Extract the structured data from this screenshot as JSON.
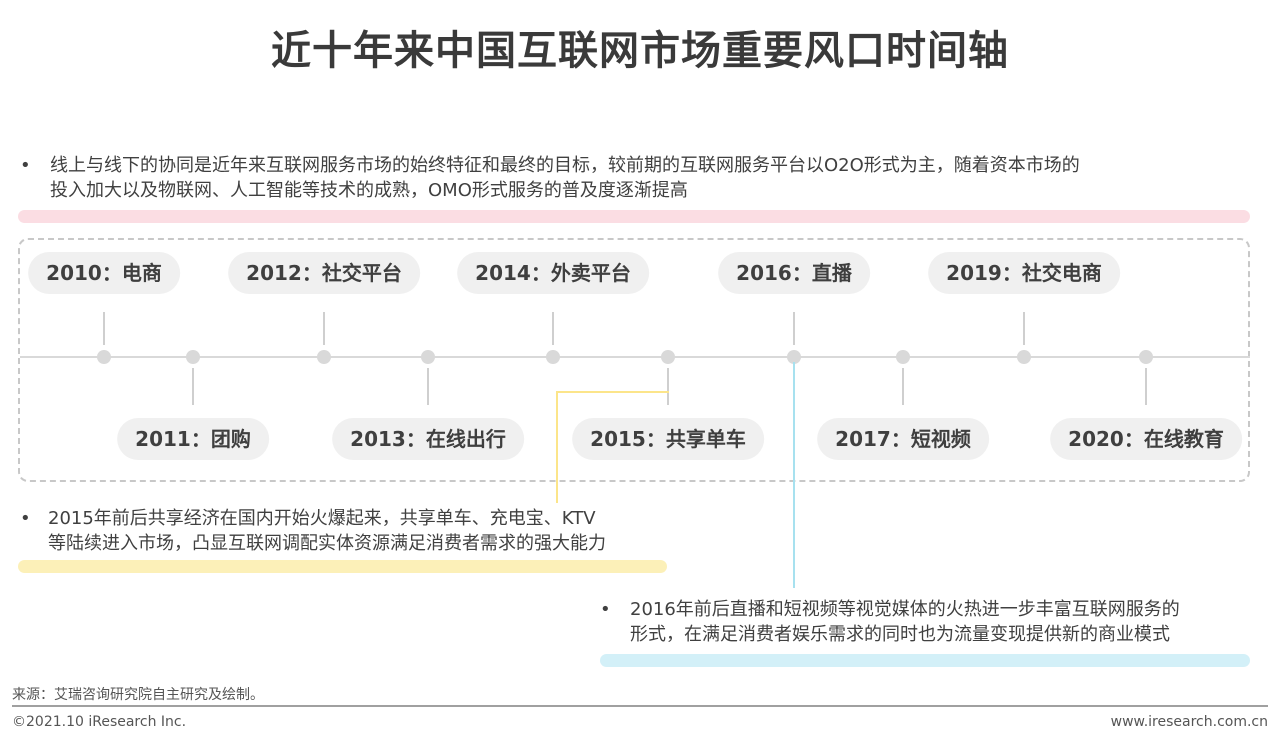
{
  "title": "近十年来中国互联网市场重要风口时间轴",
  "intro": {
    "line1": "线上与线下的协同是近年来互联网服务市场的始终特征和最终的目标，较前期的互联网服务平台以O2O形式为主，随着资本市场的",
    "line2": "投入加大以及物联网、人工智能等技术的成熟，OMO形式服务的普及度逐渐提高"
  },
  "milestones": [
    {
      "label": "2010：电商",
      "pos": "top"
    },
    {
      "label": "2011：团购",
      "pos": "bottom"
    },
    {
      "label": "2012：社交平台",
      "pos": "top"
    },
    {
      "label": "2013：在线出行",
      "pos": "bottom"
    },
    {
      "label": "2014：外卖平台",
      "pos": "top"
    },
    {
      "label": "2015：共享单车",
      "pos": "bottom"
    },
    {
      "label": "2016：直播",
      "pos": "top"
    },
    {
      "label": "2017：短视频",
      "pos": "bottom"
    },
    {
      "label": "2019：社交电商",
      "pos": "top"
    },
    {
      "label": "2020：在线教育",
      "pos": "bottom"
    }
  ],
  "note2015": {
    "line1": "2015年前后共享经济在国内开始火爆起来，共享单车、充电宝、KTV",
    "line2": "等陆续进入市场，凸显互联网调配实体资源满足消费者需求的强大能力"
  },
  "note2016": {
    "line1": "2016年前后直播和短视频等视觉媒体的火热进一步丰富互联网服务的",
    "line2": "形式，在满足消费者娱乐需求的同时也为流量变现提供新的商业模式"
  },
  "bullet": "•",
  "source": "来源：艾瑞咨询研究院自主研究及绘制。",
  "copyright": "©2021.10 iResearch Inc.",
  "website": "www.iresearch.com.cn",
  "colors": {
    "pink": "#fbdde3",
    "yellow": "#fcf0b8",
    "blue": "#d3f0f8",
    "yellow_line": "#fce58a",
    "blue_line": "#a7e1ef"
  }
}
